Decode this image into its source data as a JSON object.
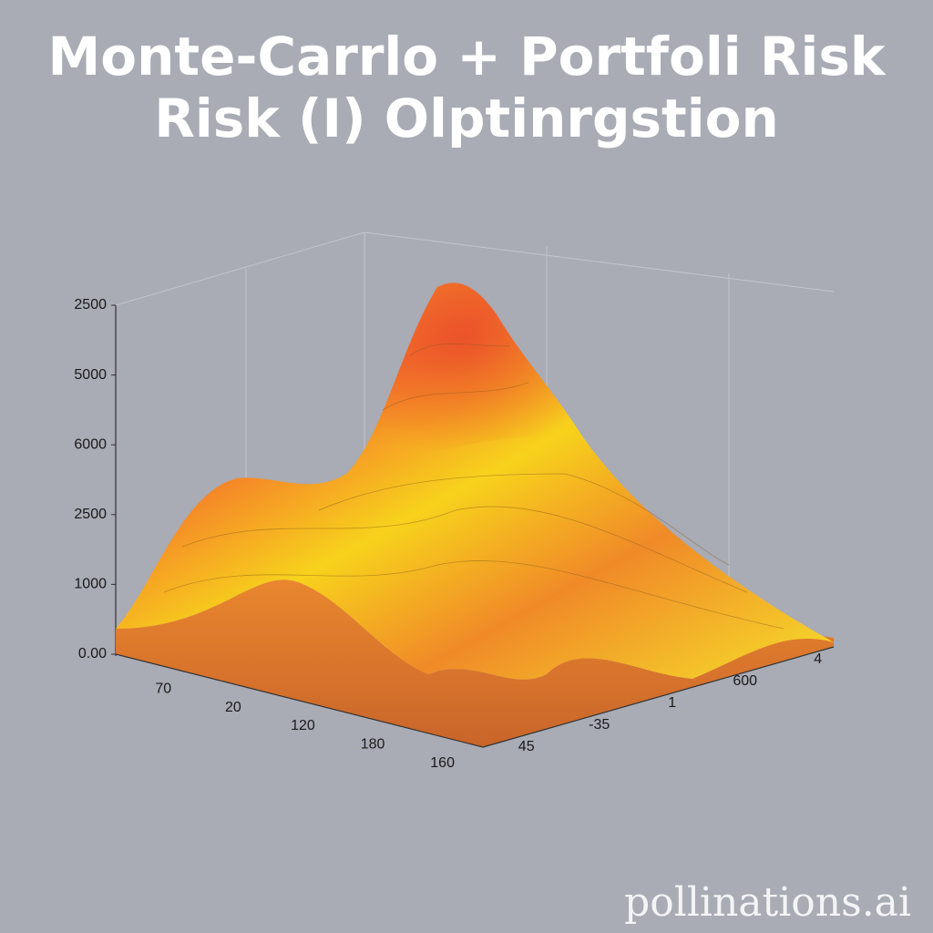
{
  "chart_data": {
    "type": "surface",
    "title_lines": [
      "Monte-Carrlo + Portfoli Risk",
      "Risk (I) Olptinrgstion"
    ],
    "y_axis_labels": [
      "2500",
      "5000",
      "6000",
      "2500",
      "1000",
      "0.00"
    ],
    "x_axis_labels": [
      "70",
      "20",
      "120",
      "180",
      "160"
    ],
    "depth_axis_labels": [
      "45",
      "-35",
      "1",
      "600",
      "4"
    ]
  },
  "watermark": "pollinations.ai"
}
